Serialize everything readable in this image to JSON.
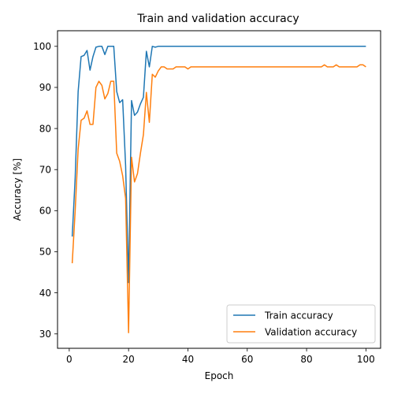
{
  "chart_data": {
    "type": "line",
    "title": "Train and validation accuracy",
    "xlabel": "Epoch",
    "ylabel": "Accuracy [%]",
    "xlim": [
      -3.95,
      104.95
    ],
    "ylim": [
      26.5,
      103.8
    ],
    "xticks": [
      0,
      20,
      40,
      60,
      80,
      100
    ],
    "yticks": [
      30,
      40,
      50,
      60,
      70,
      80,
      90,
      100
    ],
    "grid": false,
    "legend_position": "lower-right",
    "series": [
      {
        "name": "Train accuracy",
        "color": "#1f77b4",
        "x": [
          1,
          2,
          3,
          4,
          5,
          6,
          7,
          8,
          9,
          10,
          11,
          12,
          13,
          14,
          15,
          16,
          17,
          18,
          19,
          20,
          21,
          22,
          23,
          24,
          25,
          26,
          27,
          28,
          29,
          30,
          31,
          32,
          33,
          34,
          35,
          36,
          37,
          38,
          39,
          40,
          41,
          42,
          43,
          44,
          45,
          46,
          47,
          48,
          49,
          50,
          51,
          52,
          53,
          54,
          55,
          56,
          57,
          58,
          59,
          60,
          61,
          62,
          63,
          64,
          65,
          66,
          67,
          68,
          69,
          70,
          71,
          72,
          73,
          74,
          75,
          76,
          77,
          78,
          79,
          80,
          81,
          82,
          83,
          84,
          85,
          86,
          87,
          88,
          89,
          90,
          91,
          92,
          93,
          94,
          95,
          96,
          97,
          98,
          99,
          100
        ],
        "values": [
          53.7,
          68.0,
          89.0,
          97.5,
          97.8,
          99.0,
          94.2,
          97.5,
          99.8,
          100,
          100,
          98.0,
          100,
          100,
          100,
          89.0,
          86.3,
          87.0,
          71.0,
          42.5,
          86.8,
          83.2,
          84.0,
          86.0,
          87.6,
          98.8,
          95.0,
          100,
          99.8,
          100,
          100,
          100,
          100,
          100,
          100,
          100,
          100,
          100,
          100,
          100,
          100,
          100,
          100,
          100,
          100,
          100,
          100,
          100,
          100,
          100,
          100,
          100,
          100,
          100,
          100,
          100,
          100,
          100,
          100,
          100,
          100,
          100,
          100,
          100,
          100,
          100,
          100,
          100,
          100,
          100,
          100,
          100,
          100,
          100,
          100,
          100,
          100,
          100,
          100,
          100,
          100,
          100,
          100,
          100,
          100,
          100,
          100,
          100,
          100,
          100,
          100,
          100,
          100,
          100,
          100,
          100,
          100,
          100,
          100,
          100
        ]
      },
      {
        "name": "Validation accuracy",
        "color": "#ff7f0e",
        "x": [
          1,
          2,
          3,
          4,
          5,
          6,
          7,
          8,
          9,
          10,
          11,
          12,
          13,
          14,
          15,
          16,
          17,
          18,
          19,
          20,
          21,
          22,
          23,
          24,
          25,
          26,
          27,
          28,
          29,
          30,
          31,
          32,
          33,
          34,
          35,
          36,
          37,
          38,
          39,
          40,
          41,
          42,
          43,
          44,
          45,
          46,
          47,
          48,
          49,
          50,
          51,
          52,
          53,
          54,
          55,
          56,
          57,
          58,
          59,
          60,
          61,
          62,
          63,
          64,
          65,
          66,
          67,
          68,
          69,
          70,
          71,
          72,
          73,
          74,
          75,
          76,
          77,
          78,
          79,
          80,
          81,
          82,
          83,
          84,
          85,
          86,
          87,
          88,
          89,
          90,
          91,
          92,
          93,
          94,
          95,
          96,
          97,
          98,
          99,
          100
        ],
        "values": [
          47.2,
          60.0,
          75.0,
          82.0,
          82.5,
          84.3,
          81.0,
          81.0,
          90.0,
          91.5,
          90.5,
          87.2,
          88.5,
          91.5,
          91.5,
          74.0,
          72.0,
          68.5,
          63.0,
          30.3,
          73.0,
          67.0,
          69.0,
          74.0,
          78.5,
          88.8,
          81.5,
          93.2,
          92.5,
          94.0,
          95.0,
          95.0,
          94.5,
          94.5,
          94.5,
          95.0,
          95.0,
          95.0,
          95.0,
          94.5,
          95.0,
          95.0,
          95.0,
          95.0,
          95.0,
          95.0,
          95.0,
          95.0,
          95.0,
          95.0,
          95.0,
          95.0,
          95.0,
          95.0,
          95.0,
          95.0,
          95.0,
          95.0,
          95.0,
          95.0,
          95.0,
          95.0,
          95.0,
          95.0,
          95.0,
          95.0,
          95.0,
          95.0,
          95.0,
          95.0,
          95.0,
          95.0,
          95.0,
          95.0,
          95.0,
          95.0,
          95.0,
          95.0,
          95.0,
          95.0,
          95.0,
          95.0,
          95.0,
          95.0,
          95.0,
          95.5,
          95.0,
          95.0,
          95.0,
          95.5,
          95.0,
          95.0,
          95.0,
          95.0,
          95.0,
          95.0,
          95.0,
          95.5,
          95.5,
          95.0
        ]
      }
    ]
  }
}
